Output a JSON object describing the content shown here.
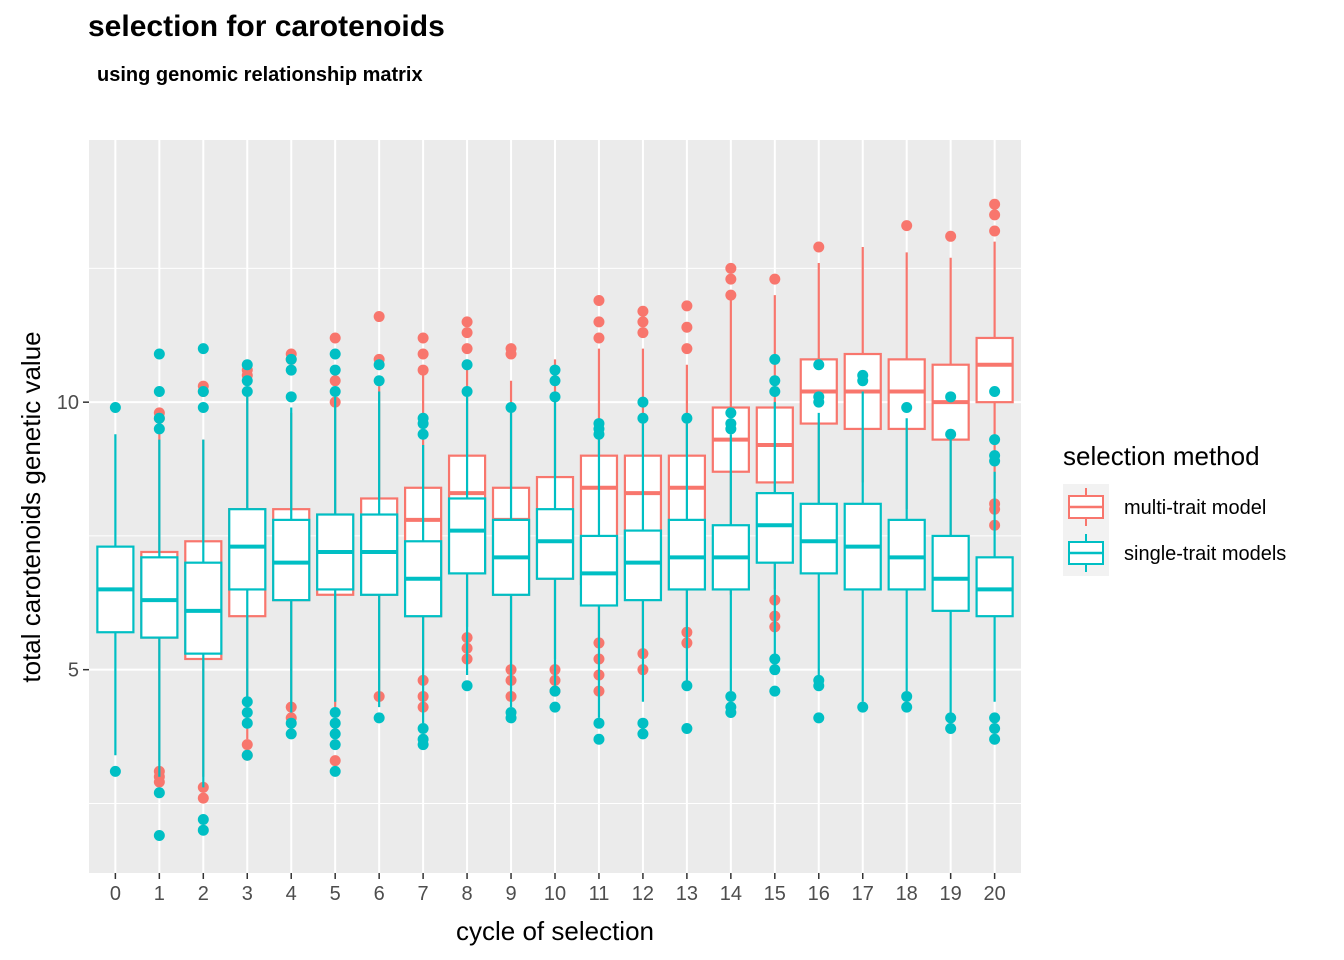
{
  "chart_data": {
    "type": "boxplot",
    "title": "selection for carotenoids",
    "subtitle": "using genomic relationship matrix",
    "xlabel": "cycle of selection",
    "ylabel": "total carotenoids genetic value",
    "categories": [
      "0",
      "1",
      "2",
      "3",
      "4",
      "5",
      "6",
      "7",
      "8",
      "9",
      "10",
      "11",
      "12",
      "13",
      "14",
      "15",
      "16",
      "17",
      "18",
      "19",
      "20"
    ],
    "ylim": [
      1.2,
      14.9
    ],
    "yticks": [
      5,
      10
    ],
    "grid": true,
    "legend": {
      "title": "selection method",
      "position": "right",
      "entries": [
        "multi-trait model",
        "single-trait models"
      ]
    },
    "colors": {
      "multi": "#F8766D",
      "single": "#00BFC4",
      "panel": "#EBEBEB",
      "grid": "#FFFFFF"
    },
    "series": [
      {
        "name": "multi-trait model",
        "boxes": [
          null,
          {
            "x": "1",
            "q1": 5.6,
            "median": 6.3,
            "q3": 7.2,
            "whisker_low": 3.3,
            "whisker_high": 9.5,
            "outliers": [
              3.1,
              3.0,
              2.9,
              9.8,
              9.7
            ]
          },
          {
            "x": "2",
            "q1": 5.2,
            "median": 6.1,
            "q3": 7.4,
            "whisker_low": 3.0,
            "whisker_high": 9.3,
            "outliers": [
              2.8,
              2.6,
              10.3,
              10.2
            ]
          },
          {
            "x": "3",
            "q1": 6.0,
            "median": 7.3,
            "q3": 8.0,
            "whisker_low": 3.7,
            "whisker_high": 10.2,
            "outliers": [
              3.6,
              3.4,
              10.6,
              10.5
            ]
          },
          {
            "x": "4",
            "q1": 6.3,
            "median": 7.0,
            "q3": 8.0,
            "whisker_low": 4.4,
            "whisker_high": 9.8,
            "outliers": [
              4.3,
              4.1,
              10.9,
              10.8
            ]
          },
          {
            "x": "5",
            "q1": 6.4,
            "median": 7.2,
            "q3": 7.9,
            "whisker_low": 4.3,
            "whisker_high": 9.9,
            "outliers": [
              3.3,
              10.0,
              10.4,
              11.2
            ]
          },
          {
            "x": "6",
            "q1": 6.4,
            "median": 7.2,
            "q3": 8.2,
            "whisker_low": 4.6,
            "whisker_high": 10.3,
            "outliers": [
              4.5,
              10.8,
              11.6
            ]
          },
          {
            "x": "7",
            "q1": 6.0,
            "median": 7.8,
            "q3": 8.4,
            "whisker_low": 5.0,
            "whisker_high": 10.5,
            "outliers": [
              4.8,
              4.5,
              4.3,
              10.6,
              10.9,
              11.2
            ]
          },
          {
            "x": "8",
            "q1": 6.8,
            "median": 8.3,
            "q3": 9.0,
            "whisker_low": 5.8,
            "whisker_high": 10.8,
            "outliers": [
              5.6,
              5.4,
              5.2,
              11.0,
              11.3,
              11.5
            ]
          },
          {
            "x": "9",
            "q1": 6.4,
            "median": 7.8,
            "q3": 8.4,
            "whisker_low": 5.1,
            "whisker_high": 10.4,
            "outliers": [
              5.0,
              4.8,
              4.5,
              10.9,
              11.0
            ]
          },
          {
            "x": "10",
            "q1": 6.7,
            "median": 7.4,
            "q3": 8.6,
            "whisker_low": 5.2,
            "whisker_high": 10.8,
            "outliers": [
              5.0,
              4.8,
              4.6
            ]
          },
          {
            "x": "11",
            "q1": 6.6,
            "median": 8.4,
            "q3": 9.0,
            "whisker_low": 5.6,
            "whisker_high": 11.0,
            "outliers": [
              5.5,
              5.2,
              4.9,
              4.6,
              11.2,
              11.5,
              11.9
            ]
          },
          {
            "x": "12",
            "q1": 6.5,
            "median": 8.3,
            "q3": 9.0,
            "whisker_low": 5.4,
            "whisker_high": 11.0,
            "outliers": [
              5.3,
              5.0,
              11.3,
              11.5,
              11.7
            ]
          },
          {
            "x": "13",
            "q1": 6.5,
            "median": 8.4,
            "q3": 9.0,
            "whisker_low": 5.8,
            "whisker_high": 10.7,
            "outliers": [
              5.7,
              5.5,
              11.0,
              11.4,
              11.8
            ]
          },
          {
            "x": "14",
            "q1": 8.7,
            "median": 9.3,
            "q3": 9.9,
            "whisker_low": 6.4,
            "whisker_high": 11.9,
            "outliers": [
              12.0,
              12.3,
              12.5
            ]
          },
          {
            "x": "15",
            "q1": 8.5,
            "median": 9.2,
            "q3": 9.9,
            "whisker_low": 6.5,
            "whisker_high": 12.0,
            "outliers": [
              6.3,
              6.0,
              5.8,
              12.3
            ]
          },
          {
            "x": "16",
            "q1": 9.6,
            "median": 10.2,
            "q3": 10.8,
            "whisker_low": 8.0,
            "whisker_high": 12.6,
            "outliers": [
              12.9
            ]
          },
          {
            "x": "17",
            "q1": 9.5,
            "median": 10.2,
            "q3": 10.9,
            "whisker_low": 8.5,
            "whisker_high": 12.9,
            "outliers": []
          },
          {
            "x": "18",
            "q1": 9.5,
            "median": 10.2,
            "q3": 10.8,
            "whisker_low": 8.0,
            "whisker_high": 12.8,
            "outliers": [
              13.3
            ]
          },
          {
            "x": "19",
            "q1": 9.3,
            "median": 10.0,
            "q3": 10.7,
            "whisker_low": 7.5,
            "whisker_high": 12.7,
            "outliers": [
              13.1
            ]
          },
          {
            "x": "20",
            "q1": 10.0,
            "median": 10.7,
            "q3": 11.2,
            "whisker_low": 8.3,
            "whisker_high": 13.0,
            "outliers": [
              7.7,
              8.0,
              8.1,
              13.2,
              13.5,
              13.7
            ]
          }
        ]
      },
      {
        "name": "single-trait models",
        "boxes": [
          {
            "x": "0",
            "q1": 5.7,
            "median": 6.5,
            "q3": 7.3,
            "whisker_low": 3.4,
            "whisker_high": 9.4,
            "outliers": [
              3.1,
              9.9
            ]
          },
          {
            "x": "1",
            "q1": 5.6,
            "median": 6.3,
            "q3": 7.1,
            "whisker_low": 3.0,
            "whisker_high": 9.3,
            "outliers": [
              2.7,
              1.9,
              9.5,
              9.7,
              10.2,
              10.9
            ]
          },
          {
            "x": "2",
            "q1": 5.3,
            "median": 6.1,
            "q3": 7.0,
            "whisker_low": 2.8,
            "whisker_high": 9.3,
            "outliers": [
              2.2,
              2.0,
              9.9,
              10.2,
              11.0
            ]
          },
          {
            "x": "3",
            "q1": 6.5,
            "median": 7.3,
            "q3": 8.0,
            "whisker_low": 4.5,
            "whisker_high": 10.1,
            "outliers": [
              4.4,
              4.2,
              4.0,
              3.4,
              10.2,
              10.4,
              10.7
            ]
          },
          {
            "x": "4",
            "q1": 6.3,
            "median": 7.0,
            "q3": 7.8,
            "whisker_low": 4.2,
            "whisker_high": 9.9,
            "outliers": [
              4.0,
              3.8,
              10.1,
              10.6,
              10.8
            ]
          },
          {
            "x": "5",
            "q1": 6.5,
            "median": 7.2,
            "q3": 7.9,
            "whisker_low": 4.4,
            "whisker_high": 10.1,
            "outliers": [
              4.2,
              4.0,
              3.8,
              3.6,
              3.1,
              10.2,
              10.6,
              10.9
            ]
          },
          {
            "x": "6",
            "q1": 6.4,
            "median": 7.2,
            "q3": 7.9,
            "whisker_low": 4.3,
            "whisker_high": 10.2,
            "outliers": [
              4.1,
              10.4,
              10.7
            ]
          },
          {
            "x": "7",
            "q1": 6.0,
            "median": 6.7,
            "q3": 7.4,
            "whisker_low": 4.0,
            "whisker_high": 9.2,
            "outliers": [
              3.9,
              3.7,
              3.6,
              9.4,
              9.6,
              9.7
            ]
          },
          {
            "x": "8",
            "q1": 6.8,
            "median": 7.6,
            "q3": 8.2,
            "whisker_low": 4.9,
            "whisker_high": 10.1,
            "outliers": [
              4.7,
              10.2,
              10.7
            ]
          },
          {
            "x": "9",
            "q1": 6.4,
            "median": 7.1,
            "q3": 7.8,
            "whisker_low": 4.3,
            "whisker_high": 9.8,
            "outliers": [
              4.2,
              4.1,
              9.9
            ]
          },
          {
            "x": "10",
            "q1": 6.7,
            "median": 7.4,
            "q3": 8.0,
            "whisker_low": 4.7,
            "whisker_high": 10.0,
            "outliers": [
              4.6,
              4.3,
              10.1,
              10.4,
              10.6
            ]
          },
          {
            "x": "11",
            "q1": 6.2,
            "median": 6.8,
            "q3": 7.5,
            "whisker_low": 4.1,
            "whisker_high": 9.3,
            "outliers": [
              4.0,
              3.7,
              9.4,
              9.5,
              9.6
            ]
          },
          {
            "x": "12",
            "q1": 6.3,
            "median": 7.0,
            "q3": 7.6,
            "whisker_low": 4.4,
            "whisker_high": 9.6,
            "outliers": [
              4.0,
              3.8,
              9.7,
              10.0
            ]
          },
          {
            "x": "13",
            "q1": 6.5,
            "median": 7.1,
            "q3": 7.8,
            "whisker_low": 4.7,
            "whisker_high": 9.6,
            "outliers": [
              4.7,
              3.9,
              9.7
            ]
          },
          {
            "x": "14",
            "q1": 6.5,
            "median": 7.1,
            "q3": 7.7,
            "whisker_low": 4.6,
            "whisker_high": 9.4,
            "outliers": [
              4.5,
              4.3,
              4.2,
              9.5,
              9.6,
              9.8
            ]
          },
          {
            "x": "15",
            "q1": 7.0,
            "median": 7.7,
            "q3": 8.3,
            "whisker_low": 5.2,
            "whisker_high": 10.0,
            "outliers": [
              5.2,
              5.0,
              4.6,
              10.2,
              10.4,
              10.8
            ]
          },
          {
            "x": "16",
            "q1": 6.8,
            "median": 7.4,
            "q3": 8.1,
            "whisker_low": 4.9,
            "whisker_high": 9.8,
            "outliers": [
              4.8,
              4.7,
              4.1,
              10.0,
              10.1,
              10.7
            ]
          },
          {
            "x": "17",
            "q1": 6.5,
            "median": 7.3,
            "q3": 8.1,
            "whisker_low": 4.4,
            "whisker_high": 10.2,
            "outliers": [
              4.3,
              10.4,
              10.5
            ]
          },
          {
            "x": "18",
            "q1": 6.5,
            "median": 7.1,
            "q3": 7.8,
            "whisker_low": 4.6,
            "whisker_high": 9.7,
            "outliers": [
              4.5,
              4.3,
              9.9
            ]
          },
          {
            "x": "19",
            "q1": 6.1,
            "median": 6.7,
            "q3": 7.5,
            "whisker_low": 4.2,
            "whisker_high": 9.3,
            "outliers": [
              4.1,
              3.9,
              9.4,
              10.1
            ]
          },
          {
            "x": "20",
            "q1": 6.0,
            "median": 6.5,
            "q3": 7.1,
            "whisker_low": 4.4,
            "whisker_high": 8.7,
            "outliers": [
              4.1,
              3.9,
              3.7,
              8.9,
              9.0,
              9.3,
              10.2
            ]
          }
        ]
      }
    ]
  }
}
